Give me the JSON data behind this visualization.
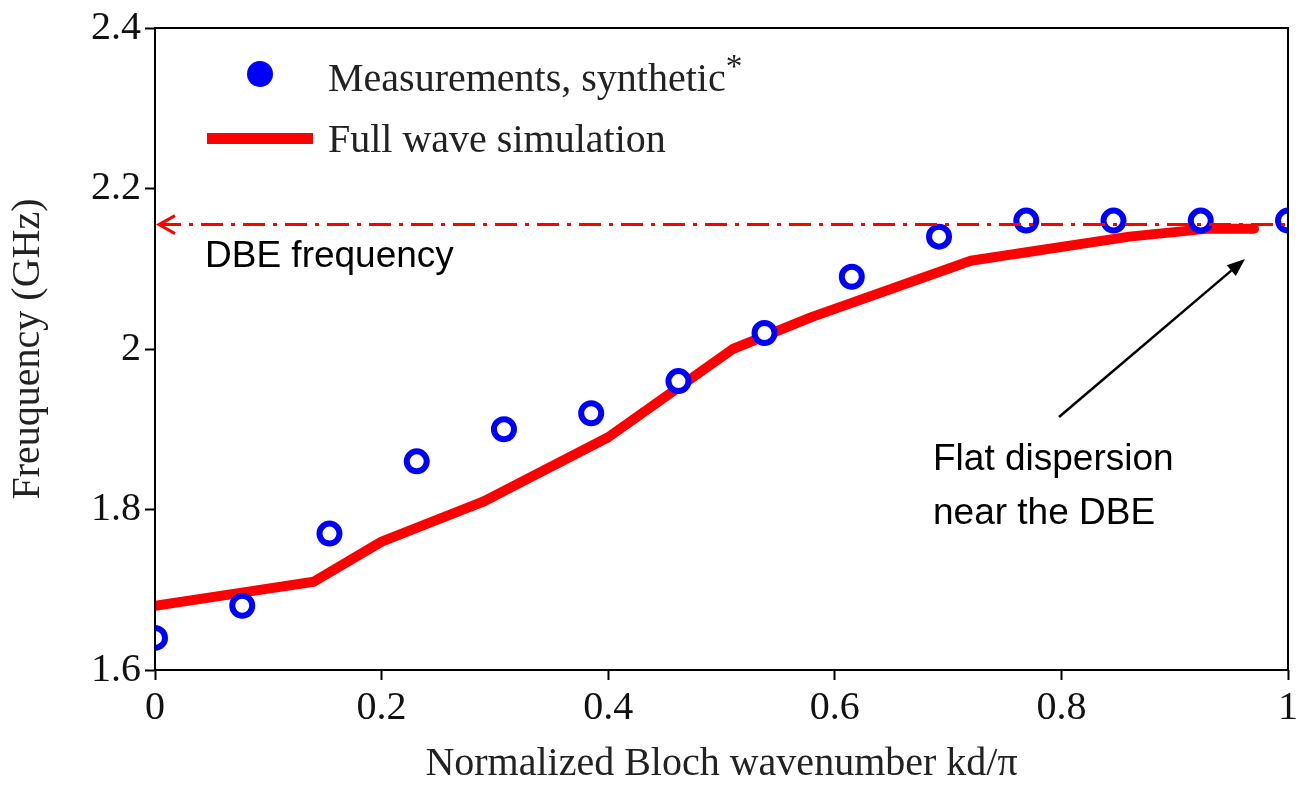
{
  "chart_data": {
    "type": "line",
    "xlabel": "Normalized Bloch wavenumber kd/π",
    "ylabel": "Freuquency (GHz)",
    "xlim": [
      0,
      1
    ],
    "ylim": [
      1.6,
      2.4
    ],
    "xticks": [
      0,
      0.2,
      0.4,
      0.6,
      0.8,
      1
    ],
    "yticks": [
      1.6,
      1.8,
      2,
      2.2,
      2.4
    ],
    "grid": false,
    "legend": "top left",
    "series": [
      {
        "name": "Measurements, synthetic$^{*}$",
        "type": "scatter",
        "marker": "circle",
        "color": "#0000ff",
        "x": [
          0,
          0.077,
          0.154,
          0.231,
          0.308,
          0.385,
          0.462,
          0.538,
          0.615,
          0.692,
          0.769,
          0.846,
          0.923,
          1
        ],
        "values": [
          1.64,
          1.68,
          1.77,
          1.86,
          1.9,
          1.92,
          1.96,
          2.02,
          2.09,
          2.14,
          2.16,
          2.16,
          2.16,
          2.16
        ]
      },
      {
        "name": "Full wave simulation",
        "marker": "none",
        "line_style": "solid",
        "color": "#ff0000",
        "x": [
          0,
          0.14,
          0.2,
          0.29,
          0.4,
          0.51,
          0.58,
          0.72,
          0.86,
          0.93,
          0.97
        ],
        "values": [
          1.68,
          1.71,
          1.76,
          1.81,
          1.89,
          2.0,
          2.04,
          2.11,
          2.14,
          2.15,
          2.15
        ]
      }
    ],
    "ref_lines": [
      {
        "axis": "y",
        "value": 2.155,
        "label": "DBE frequency",
        "color": "#ff0000",
        "line_style": "dashed"
      }
    ],
    "annotations": [
      "Flat dispersion near the DBE"
    ]
  }
}
